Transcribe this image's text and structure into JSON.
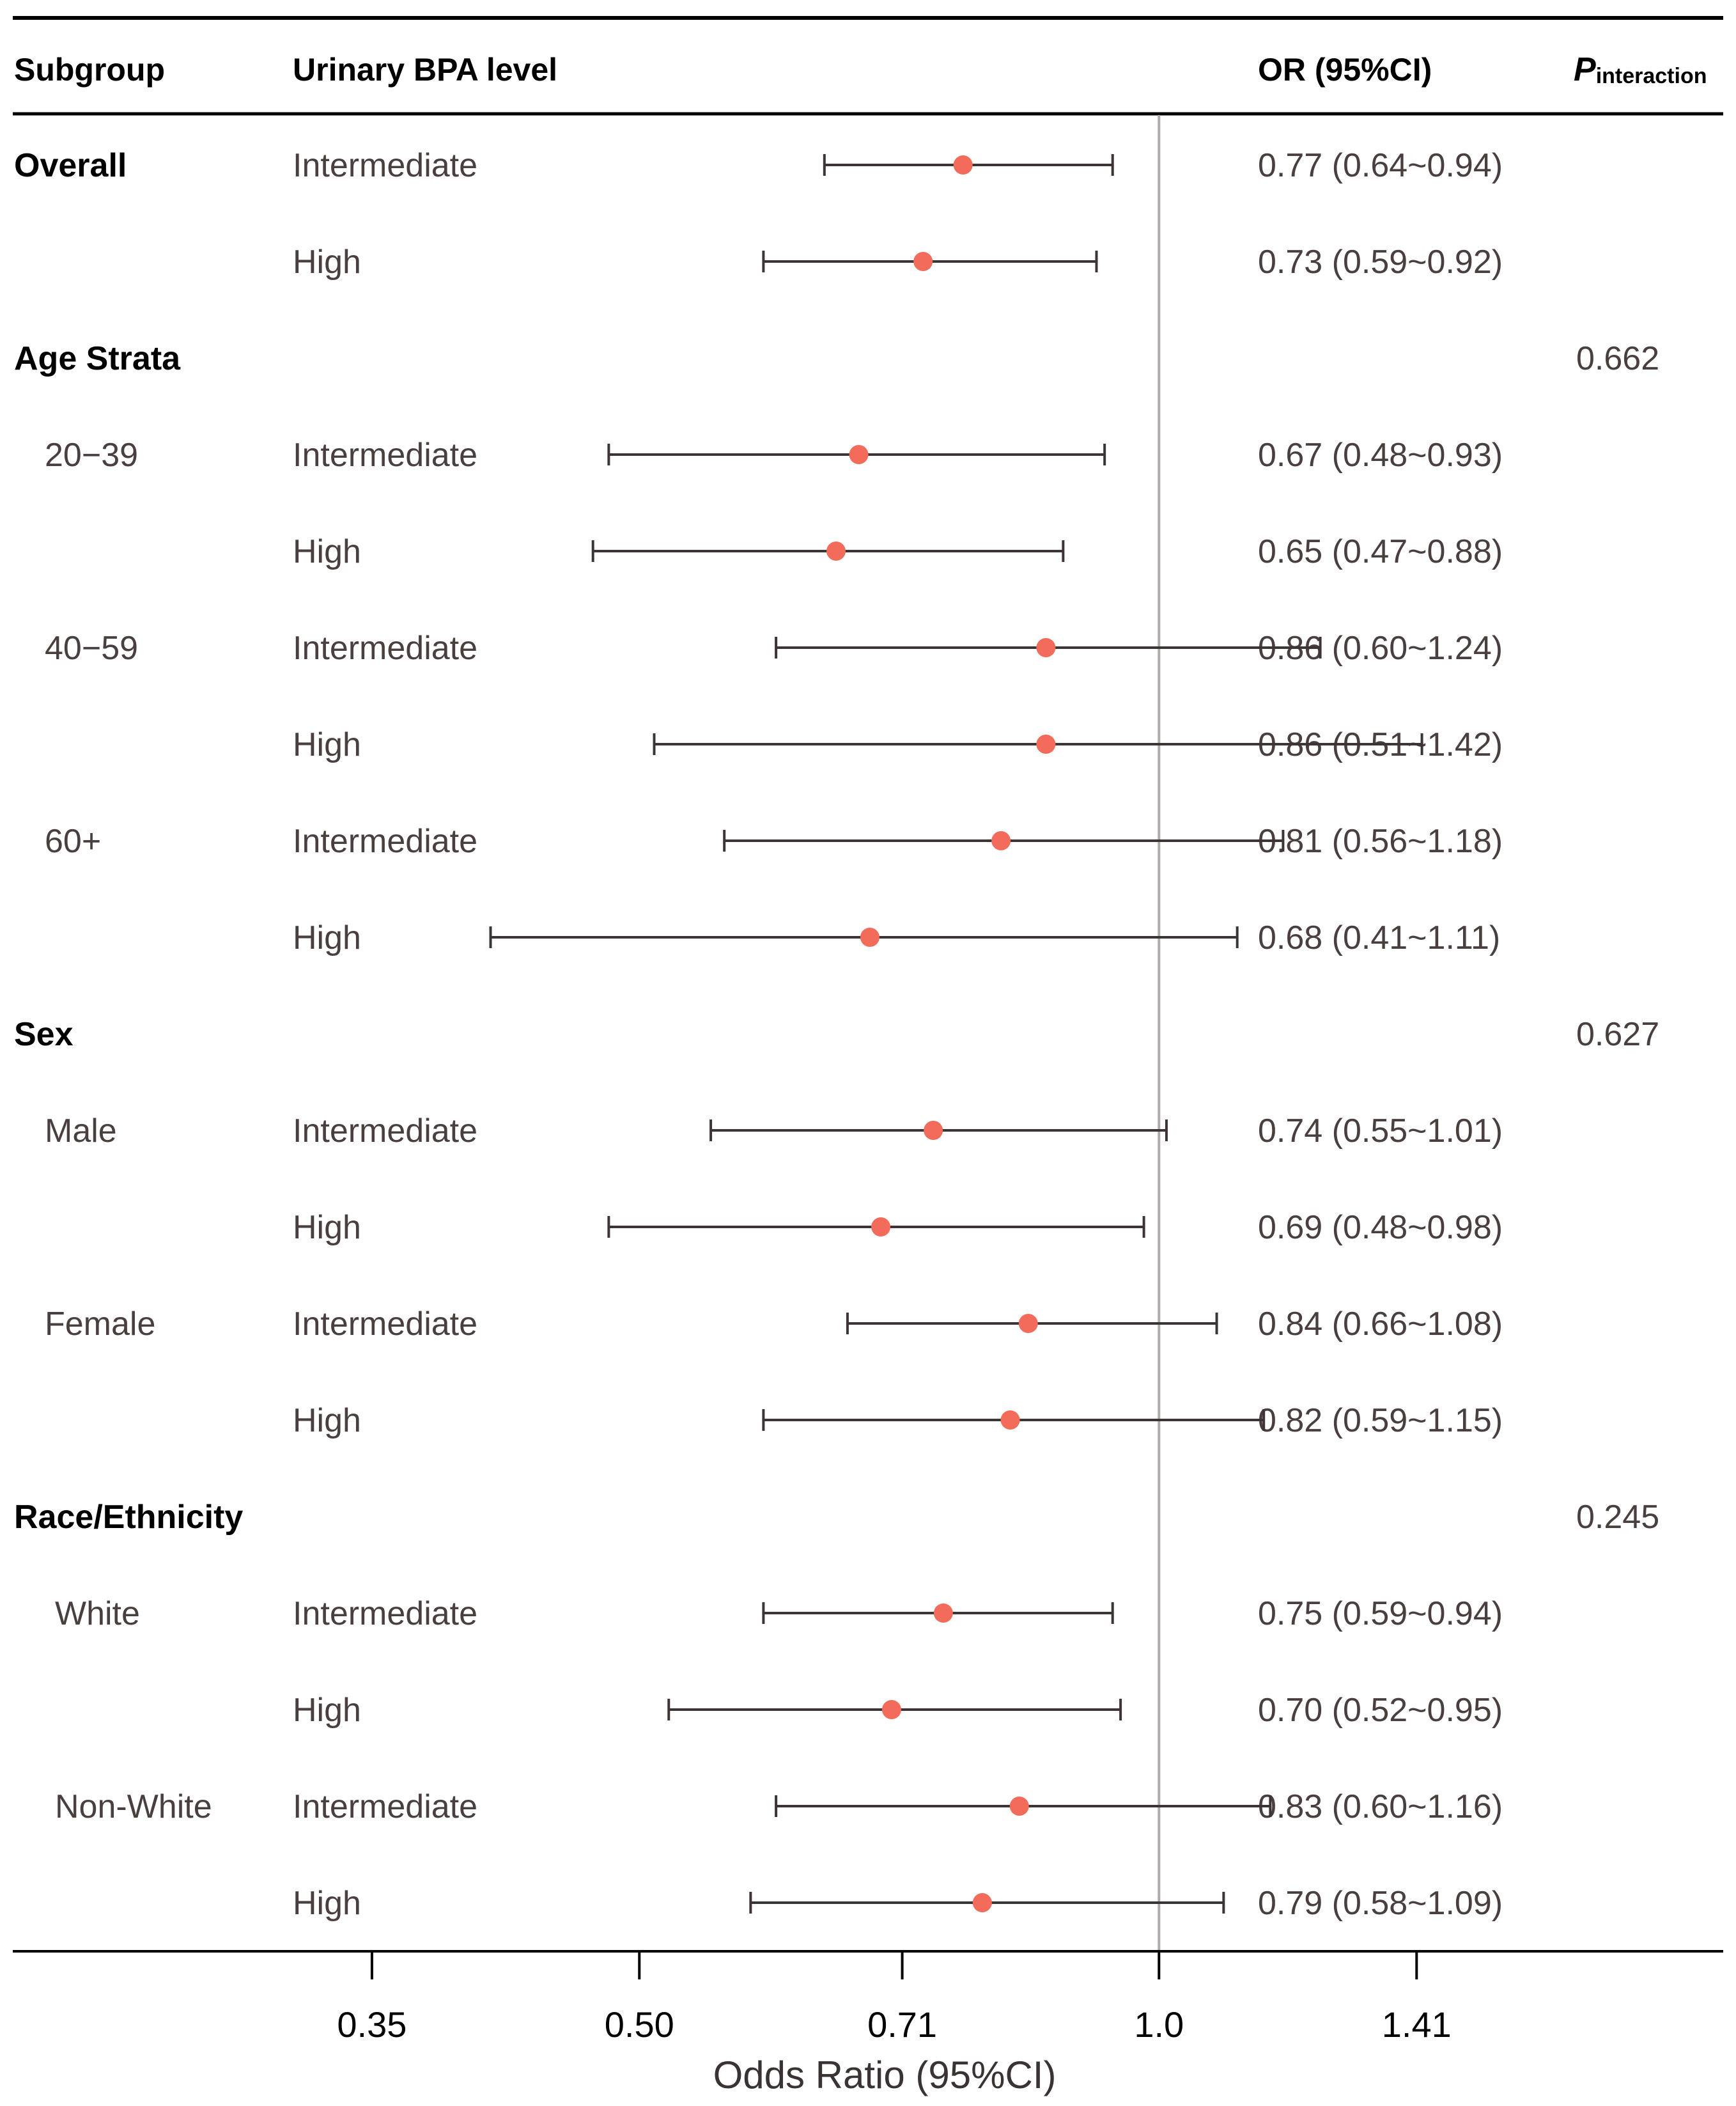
{
  "chart_data": {
    "type": "forest",
    "xscale": "log",
    "xlabel": "Odds Ratio (95%CI)",
    "xticks": [
      0.35,
      0.5,
      0.71,
      1.0,
      1.41
    ],
    "xtick_labels": [
      "0.35",
      "0.50",
      "0.71",
      "1.0",
      "1.41"
    ],
    "xlim": [
      0.2877,
      1.8143
    ],
    "reference_line": 1.0,
    "columns": {
      "subgroup": "Subgroup",
      "level": "Urinary BPA level",
      "or": "OR (95%CI)",
      "p_main": "P",
      "p_sub": "interaction"
    },
    "rows": [
      {
        "kind": "group",
        "label": "Overall",
        "level": "Intermediate",
        "or": 0.77,
        "lo": 0.64,
        "hi": 0.94,
        "text": "0.77 (0.64~0.94)"
      },
      {
        "kind": "data",
        "label": "",
        "level": "High",
        "or": 0.73,
        "lo": 0.59,
        "hi": 0.92,
        "text": "0.73 (0.59~0.92)"
      },
      {
        "kind": "header",
        "label": "Age Strata",
        "p": "0.662"
      },
      {
        "kind": "data",
        "label": "20−39",
        "level": "Intermediate",
        "or": 0.67,
        "lo": 0.48,
        "hi": 0.93,
        "text": "0.67 (0.48~0.93)"
      },
      {
        "kind": "data",
        "label": "",
        "level": "High",
        "or": 0.65,
        "lo": 0.47,
        "hi": 0.88,
        "text": "0.65 (0.47~0.88)"
      },
      {
        "kind": "data",
        "label": "40−59",
        "level": "Intermediate",
        "or": 0.86,
        "lo": 0.6,
        "hi": 1.24,
        "text": "0.86 (0.60~1.24)"
      },
      {
        "kind": "data",
        "label": "",
        "level": "High",
        "or": 0.86,
        "lo": 0.51,
        "hi": 1.42,
        "text": "0.86 (0.51~1.42)"
      },
      {
        "kind": "data",
        "label": "60+",
        "level": "Intermediate",
        "or": 0.81,
        "lo": 0.56,
        "hi": 1.18,
        "text": "0.81 (0.56~1.18)"
      },
      {
        "kind": "data",
        "label": "",
        "level": "High",
        "or": 0.68,
        "lo": 0.41,
        "hi": 1.11,
        "text": "0.68 (0.41~1.11)"
      },
      {
        "kind": "header",
        "label": "Sex",
        "p": "0.627"
      },
      {
        "kind": "data",
        "label": "Male",
        "level": "Intermediate",
        "or": 0.74,
        "lo": 0.55,
        "hi": 1.01,
        "text": "0.74 (0.55~1.01)"
      },
      {
        "kind": "data",
        "label": "",
        "level": "High",
        "or": 0.69,
        "lo": 0.48,
        "hi": 0.98,
        "text": "0.69 (0.48~0.98)"
      },
      {
        "kind": "data",
        "label": "Female",
        "level": "Intermediate",
        "or": 0.84,
        "lo": 0.66,
        "hi": 1.08,
        "text": "0.84 (0.66~1.08)"
      },
      {
        "kind": "data",
        "label": "",
        "level": "High",
        "or": 0.82,
        "lo": 0.59,
        "hi": 1.15,
        "text": "0.82 (0.59~1.15)"
      },
      {
        "kind": "header",
        "label": "Race/Ethnicity",
        "p": "0.245"
      },
      {
        "kind": "data",
        "label": "White",
        "level": "Intermediate",
        "or": 0.75,
        "lo": 0.59,
        "hi": 0.94,
        "text": "0.75 (0.59~0.94)"
      },
      {
        "kind": "data",
        "label": "",
        "level": "High",
        "or": 0.7,
        "lo": 0.52,
        "hi": 0.95,
        "text": "0.70 (0.52~0.95)"
      },
      {
        "kind": "data",
        "label": "Non-White",
        "level": "Intermediate",
        "or": 0.83,
        "lo": 0.6,
        "hi": 1.16,
        "text": "0.83 (0.60~1.16)"
      },
      {
        "kind": "data",
        "label": "",
        "level": "High",
        "or": 0.79,
        "lo": 0.58,
        "hi": 1.09,
        "text": "0.79 (0.58~1.09)"
      }
    ],
    "colors": {
      "point": "#f26b5b",
      "ci": "#3d3535",
      "refline": "#b0aaaa",
      "rule": "#000000"
    }
  }
}
